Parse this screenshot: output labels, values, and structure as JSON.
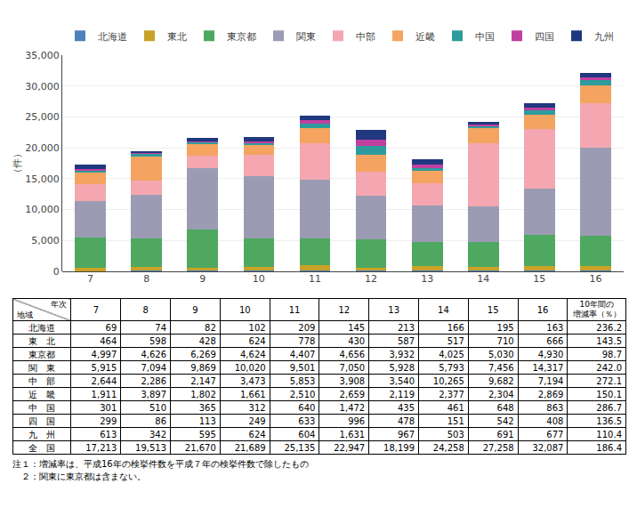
{
  "chart_data": {
    "type": "bar",
    "stacked": true,
    "categories": [
      "7",
      "8",
      "9",
      "10",
      "11",
      "12",
      "13",
      "14",
      "15",
      "16"
    ],
    "series": [
      {
        "name": "北海道",
        "color": "#4F81BD",
        "values": [
          69,
          74,
          82,
          102,
          209,
          145,
          213,
          166,
          195,
          163
        ]
      },
      {
        "name": "東北",
        "color": "#C9A227",
        "values": [
          464,
          598,
          428,
          624,
          778,
          430,
          587,
          517,
          710,
          666
        ]
      },
      {
        "name": "東京都",
        "color": "#4EA860",
        "values": [
          4997,
          4626,
          6269,
          4624,
          4407,
          4656,
          3932,
          4025,
          5030,
          4930
        ]
      },
      {
        "name": "関東",
        "color": "#9B9BB4",
        "values": [
          5915,
          7094,
          9869,
          10020,
          9501,
          7050,
          5928,
          5793,
          7456,
          14317
        ]
      },
      {
        "name": "中部",
        "color": "#F4A7B0",
        "values": [
          2644,
          2286,
          2147,
          3473,
          5853,
          3908,
          3540,
          10265,
          9682,
          7194
        ]
      },
      {
        "name": "近畿",
        "color": "#F4A460",
        "values": [
          1911,
          3897,
          1802,
          1661,
          2510,
          2659,
          2119,
          2377,
          2304,
          2869
        ]
      },
      {
        "name": "中国",
        "color": "#2E9C9C",
        "values": [
          301,
          510,
          365,
          312,
          640,
          1472,
          435,
          461,
          648,
          863
        ]
      },
      {
        "name": "四国",
        "color": "#C040A0",
        "values": [
          299,
          86,
          113,
          249,
          633,
          996,
          478,
          151,
          542,
          408
        ]
      },
      {
        "name": "九州",
        "color": "#1F3880",
        "values": [
          613,
          342,
          595,
          624,
          604,
          1631,
          967,
          503,
          691,
          677
        ]
      }
    ],
    "ylabel": "（件）",
    "ylim": [
      0,
      35000
    ],
    "yticks": [
      0,
      {
        "value": 5000,
        "label": "5,000"
      },
      {
        "value": 10000,
        "label": "10,000"
      },
      {
        "value": 15000,
        "label": "15,000"
      },
      {
        "value": 20000,
        "label": "20,000"
      },
      {
        "value": 25000,
        "label": "25,000"
      },
      {
        "value": 30000,
        "label": "30,000"
      },
      {
        "value": 35000,
        "label": "35,000"
      }
    ],
    "grid": true,
    "legend": "upper left"
  },
  "table": {
    "corner_top": "年次",
    "corner_bottom": "地域",
    "header": [
      "7",
      "8",
      "9",
      "10",
      "11",
      "12",
      "13",
      "14",
      "15",
      "16",
      "10年間の\n増減率（％）"
    ],
    "rows": [
      [
        "北海道",
        "69",
        "74",
        "82",
        "102",
        "209",
        "145",
        "213",
        "166",
        "195",
        "163",
        "236.2"
      ],
      [
        "東　北",
        "464",
        "598",
        "428",
        "624",
        "778",
        "430",
        "587",
        "517",
        "710",
        "666",
        "143.5"
      ],
      [
        "東京都",
        "4,997",
        "4,626",
        "6,269",
        "4,624",
        "4,407",
        "4,656",
        "3,932",
        "4,025",
        "5,030",
        "4,930",
        "98.7"
      ],
      [
        "関　東",
        "5,915",
        "7,094",
        "9,869",
        "10,020",
        "9,501",
        "7,050",
        "5,928",
        "5,793",
        "7,456",
        "14,317",
        "242.0"
      ],
      [
        "中　部",
        "2,644",
        "2,286",
        "2,147",
        "3,473",
        "5,853",
        "3,908",
        "3,540",
        "10,265",
        "9,682",
        "7,194",
        "272.1"
      ],
      [
        "近　畿",
        "1,911",
        "3,897",
        "1,802",
        "1,661",
        "2,510",
        "2,659",
        "2,119",
        "2,377",
        "2,304",
        "2,869",
        "150.1"
      ],
      [
        "中　国",
        "301",
        "510",
        "365",
        "312",
        "640",
        "1,472",
        "435",
        "461",
        "648",
        "863",
        "286.7"
      ],
      [
        "四　国",
        "299",
        "86",
        "113",
        "249",
        "633",
        "996",
        "478",
        "151",
        "542",
        "408",
        "136.5"
      ],
      [
        "九　州",
        "613",
        "342",
        "595",
        "624",
        "604",
        "1,631",
        "967",
        "503",
        "691",
        "677",
        "110.4"
      ],
      [
        "全　国",
        "17,213",
        "19,513",
        "21,670",
        "21,689",
        "25,135",
        "22,947",
        "18,199",
        "24,258",
        "27,258",
        "32,087",
        "186.4"
      ]
    ]
  },
  "notes": [
    "注１：増減率は、平成16年の検挙件数を平成７年の検挙件数で除したもの",
    "　２：関東に東京都は含まない。"
  ]
}
